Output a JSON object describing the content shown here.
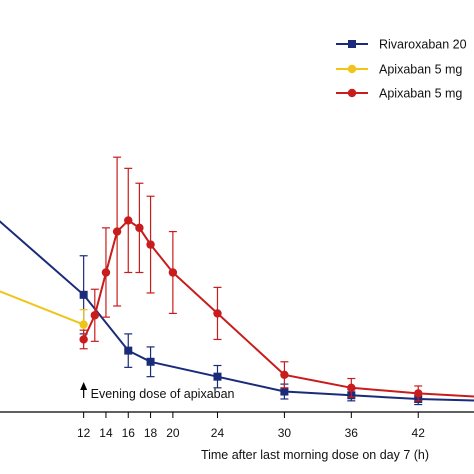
{
  "chart_data": {
    "type": "line",
    "xlabel": "Time after last morning dose on day 7 (h)",
    "ylabel": "",
    "x_ticks": [
      12,
      14,
      16,
      18,
      20,
      24,
      30,
      36,
      42
    ],
    "xlim": [
      4.5,
      47
    ],
    "ylim": [
      0,
      100
    ],
    "grid": false,
    "legend_position": "top-right",
    "annotation": "Evening dose of apixaban",
    "annotation_x": 12,
    "series": [
      {
        "name": "Rivaroxaban 20",
        "color": "#1a2b7a",
        "marker": "square",
        "points": [
          {
            "x": 4,
            "y": 52.5
          },
          {
            "x": 12,
            "y": 31.5,
            "err": 10.5
          },
          {
            "x": 16,
            "y": 16.5,
            "err": 4.5
          },
          {
            "x": 18,
            "y": 13.5,
            "err": 4
          },
          {
            "x": 24,
            "y": 9.5,
            "err": 3
          },
          {
            "x": 30,
            "y": 5.5,
            "err": 2
          },
          {
            "x": 36,
            "y": 4.5,
            "err": 1.5
          },
          {
            "x": 42,
            "y": 3.5,
            "err": 1.5
          },
          {
            "x": 48,
            "y": 3,
            "err": 1
          }
        ]
      },
      {
        "name": "Apixaban 5 mg",
        "color": "#f0c419",
        "marker": "circle",
        "points": [
          {
            "x": 4,
            "y": 33
          },
          {
            "x": 12,
            "y": 23.5,
            "err": 4
          }
        ]
      },
      {
        "name": "Apixaban 5 mg",
        "color": "#c91c1c",
        "marker": "circle",
        "points": [
          {
            "x": 12,
            "y": 19.5,
            "err": 2.5
          },
          {
            "x": 13,
            "y": 26,
            "err": 7
          },
          {
            "x": 14,
            "y": 37.5,
            "err": 12
          },
          {
            "x": 15,
            "y": 48.5,
            "err": 20
          },
          {
            "x": 16,
            "y": 51.5,
            "err": 14
          },
          {
            "x": 17,
            "y": 49.5,
            "err": 12
          },
          {
            "x": 18,
            "y": 45,
            "err": 13
          },
          {
            "x": 20,
            "y": 37.5,
            "err": 11
          },
          {
            "x": 24,
            "y": 26.5,
            "err": 7
          },
          {
            "x": 30,
            "y": 10,
            "err": 3.5
          },
          {
            "x": 36,
            "y": 6.5,
            "err": 2.5
          },
          {
            "x": 42,
            "y": 5,
            "err": 2
          },
          {
            "x": 48,
            "y": 4,
            "err": 1.5
          }
        ]
      }
    ]
  }
}
